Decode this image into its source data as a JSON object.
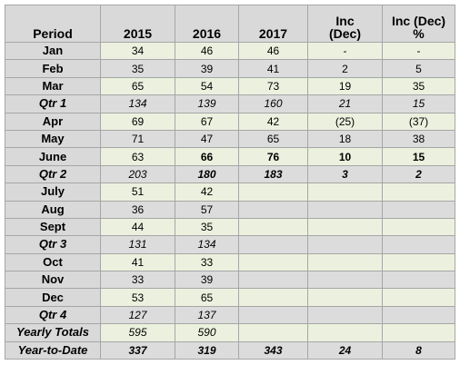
{
  "table": {
    "header": [
      "Period",
      "2015",
      "2016",
      "2017",
      "Inc\n(Dec)",
      "Inc (Dec)\n%"
    ],
    "rows": [
      [
        "Jan",
        "34",
        "46",
        "46",
        "-",
        "-"
      ],
      [
        "Feb",
        "35",
        "39",
        "41",
        "2",
        "5"
      ],
      [
        "Mar",
        "65",
        "54",
        "73",
        "19",
        "35"
      ],
      [
        "Qtr 1",
        "134",
        "139",
        "160",
        "21",
        "15"
      ],
      [
        "Apr",
        "69",
        "67",
        "42",
        "(25)",
        "(37)"
      ],
      [
        "May",
        "71",
        "47",
        "65",
        "18",
        "38"
      ],
      [
        "June",
        "63",
        "66",
        "76",
        "10",
        "15"
      ],
      [
        "Qtr 2",
        "203",
        "180",
        "183",
        "3",
        "2"
      ],
      [
        "July",
        "51",
        "42"
      ],
      [
        "Aug",
        "36",
        "57"
      ],
      [
        "Sept",
        "44",
        "35"
      ],
      [
        "Qtr 3",
        "131",
        "134"
      ],
      [
        "Oct",
        "41",
        "33"
      ],
      [
        "Nov",
        "33",
        "39"
      ],
      [
        "Dec",
        "53",
        "65"
      ],
      [
        "Qtr 4",
        "127",
        "137"
      ],
      [
        "Yearly Totals",
        "595",
        "590"
      ],
      [
        "Year-to-Date",
        "337",
        "319",
        "343",
        "24",
        "8"
      ]
    ]
  }
}
